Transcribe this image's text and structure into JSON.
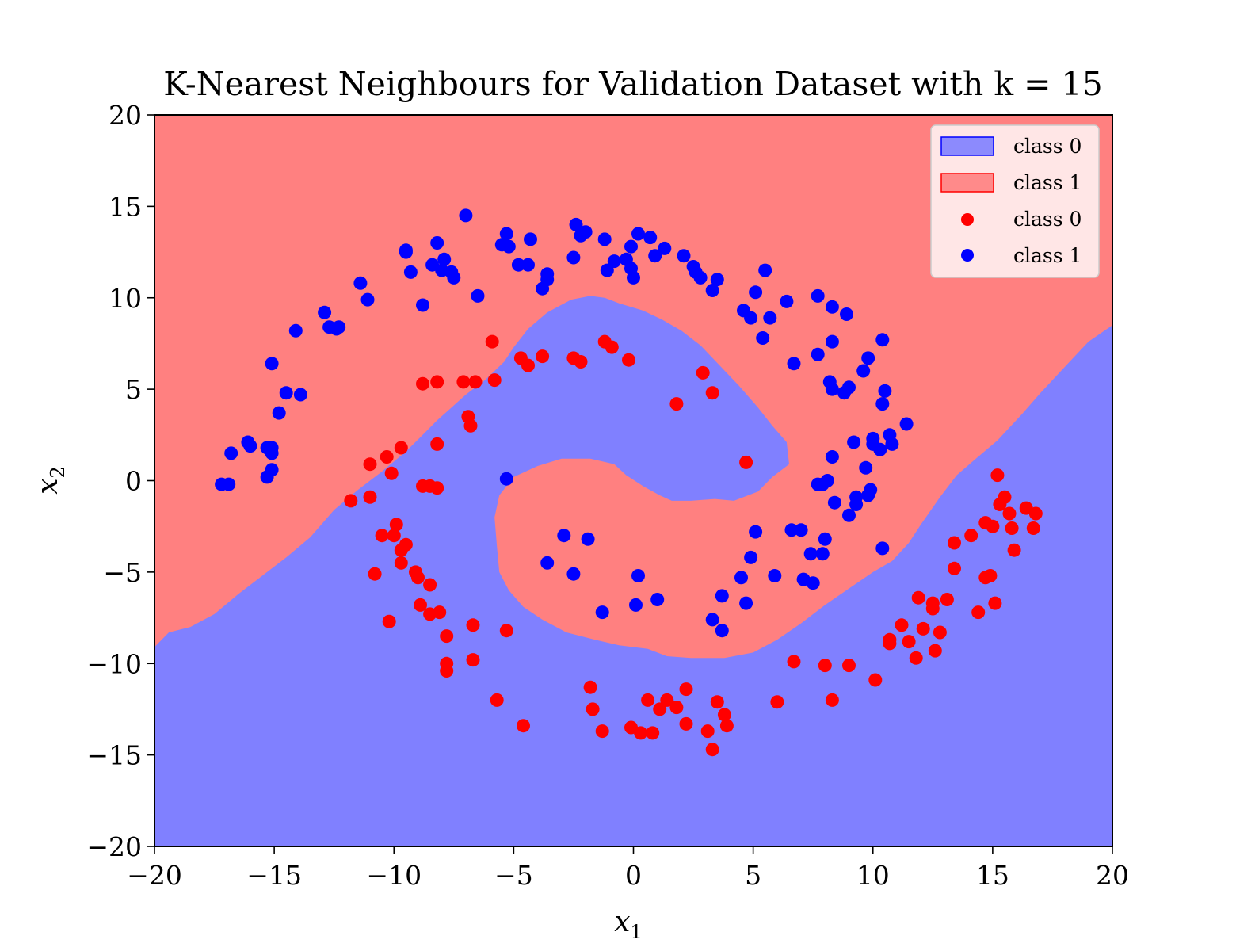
{
  "chart_data": {
    "type": "scatter",
    "title": "K-Nearest Neighbours for Validation Dataset with k = 15",
    "xlabel_main": "x",
    "xlabel_sub": "1",
    "ylabel_main": "x",
    "ylabel_sub": "2",
    "xlim": [
      -20,
      20
    ],
    "ylim": [
      -20,
      20
    ],
    "xticks": [
      -20,
      -15,
      -10,
      -5,
      0,
      5,
      10,
      15,
      20
    ],
    "yticks": [
      -20,
      -15,
      -10,
      -5,
      0,
      5,
      10,
      15,
      20
    ],
    "xtick_labels": [
      "−20",
      "−15",
      "−10",
      "−5",
      "0",
      "5",
      "10",
      "15",
      "20"
    ],
    "ytick_labels": [
      "−20",
      "−15",
      "−10",
      "−5",
      "0",
      "5",
      "10",
      "15",
      "20"
    ],
    "grid": false,
    "legend_position": "top-right",
    "colors": {
      "region_class0": "#8080ff",
      "region_class1": "#ff8080",
      "points_red": "#ff0000",
      "points_blue": "#0000ff"
    },
    "legend": [
      {
        "label": "class 0",
        "kind": "patch",
        "color": "#8080ff"
      },
      {
        "label": "class 1",
        "kind": "patch",
        "color": "#ff8080"
      },
      {
        "label": "class 0",
        "kind": "marker",
        "color": "#ff0000"
      },
      {
        "label": "class 1",
        "kind": "marker",
        "color": "#0000ff"
      }
    ],
    "decision_regions": {
      "class0_region_boundary": [
        [
          -20,
          -9.1
        ],
        [
          -19.4,
          -8.3
        ],
        [
          -18.5,
          -8.0
        ],
        [
          -17.5,
          -7.3
        ],
        [
          -16.5,
          -6.2
        ],
        [
          -15.5,
          -5.2
        ],
        [
          -14.5,
          -4.2
        ],
        [
          -13.5,
          -3.1
        ],
        [
          -12.5,
          -1.6
        ],
        [
          -11.5,
          -0.5
        ],
        [
          -10.5,
          0.5
        ],
        [
          -9.5,
          1.6
        ],
        [
          -8.8,
          2.5
        ],
        [
          -8.2,
          3.3
        ],
        [
          -7.6,
          4.0
        ],
        [
          -7.0,
          4.7
        ],
        [
          -6.2,
          5.5
        ],
        [
          -5.4,
          6.5
        ],
        [
          -5.0,
          7.3
        ],
        [
          -4.4,
          8.3
        ],
        [
          -3.6,
          9.2
        ],
        [
          -2.6,
          9.9
        ],
        [
          -1.8,
          10.1
        ],
        [
          -1.2,
          10.0
        ],
        [
          -0.6,
          9.7
        ],
        [
          0.4,
          9.3
        ],
        [
          1.2,
          8.8
        ],
        [
          2.0,
          8.2
        ],
        [
          2.8,
          7.4
        ],
        [
          3.6,
          6.3
        ],
        [
          4.4,
          5.2
        ],
        [
          5.2,
          4.0
        ],
        [
          5.8,
          3.0
        ],
        [
          6.4,
          2.1
        ],
        [
          6.5,
          0.9
        ],
        [
          5.8,
          0.2
        ],
        [
          5.2,
          -0.6
        ],
        [
          4.2,
          -1.1
        ],
        [
          3.4,
          -1.0
        ],
        [
          2.4,
          -1.1
        ],
        [
          1.6,
          -1.1
        ],
        [
          1.1,
          -0.8
        ],
        [
          0.4,
          -0.3
        ],
        [
          -0.3,
          0.3
        ],
        [
          -0.8,
          0.9
        ],
        [
          -1.8,
          1.2
        ],
        [
          -3.0,
          1.2
        ],
        [
          -4.0,
          0.8
        ],
        [
          -5.0,
          0.2
        ],
        [
          -5.6,
          -0.8
        ],
        [
          -5.8,
          -2.0
        ],
        [
          -5.7,
          -3.6
        ],
        [
          -5.6,
          -5.0
        ],
        [
          -5.2,
          -6.0
        ],
        [
          -4.6,
          -6.9
        ],
        [
          -3.8,
          -7.6
        ],
        [
          -2.8,
          -8.3
        ],
        [
          -1.6,
          -8.7
        ],
        [
          -0.6,
          -9.0
        ],
        [
          0.6,
          -9.2
        ],
        [
          1.4,
          -9.6
        ],
        [
          2.4,
          -9.7
        ],
        [
          3.8,
          -9.7
        ],
        [
          5.0,
          -9.4
        ],
        [
          6.0,
          -8.7
        ],
        [
          7.0,
          -7.8
        ],
        [
          8.0,
          -6.8
        ],
        [
          9.0,
          -5.9
        ],
        [
          10.0,
          -5.0
        ],
        [
          10.8,
          -4.4
        ],
        [
          11.5,
          -3.4
        ],
        [
          12.0,
          -2.4
        ],
        [
          12.8,
          -0.9
        ],
        [
          13.5,
          0.3
        ],
        [
          14.3,
          1.2
        ],
        [
          15.2,
          2.2
        ],
        [
          16.2,
          3.6
        ],
        [
          17.0,
          4.8
        ],
        [
          18.0,
          6.2
        ],
        [
          19.0,
          7.6
        ],
        [
          20.0,
          8.5
        ],
        [
          20,
          -20
        ],
        [
          -20,
          -20
        ]
      ]
    },
    "series": [
      {
        "name": "class 0",
        "color": "#ff0000",
        "points": [
          [
            -11.8,
            -1.1
          ],
          [
            -11.0,
            -0.9
          ],
          [
            -11.0,
            0.9
          ],
          [
            -10.3,
            1.3
          ],
          [
            -10.1,
            0.4
          ],
          [
            -9.7,
            1.8
          ],
          [
            -8.8,
            5.3
          ],
          [
            -8.2,
            5.4
          ],
          [
            -8.2,
            2.0
          ],
          [
            -8.8,
            -0.3
          ],
          [
            -8.5,
            -0.3
          ],
          [
            -8.2,
            -0.4
          ],
          [
            -10.5,
            -3.0
          ],
          [
            -10.0,
            -3.0
          ],
          [
            -9.9,
            -2.4
          ],
          [
            -9.7,
            -3.8
          ],
          [
            -9.5,
            -3.5
          ],
          [
            -9.7,
            -4.5
          ],
          [
            -10.8,
            -5.1
          ],
          [
            -9.1,
            -5.0
          ],
          [
            -9.0,
            -5.3
          ],
          [
            -8.5,
            -5.7
          ],
          [
            -8.9,
            -6.8
          ],
          [
            -8.5,
            -7.3
          ],
          [
            -8.1,
            -7.2
          ],
          [
            -10.2,
            -7.7
          ],
          [
            -7.8,
            -8.5
          ],
          [
            -7.8,
            -10.0
          ],
          [
            -7.8,
            -10.4
          ],
          [
            -6.7,
            -9.8
          ],
          [
            -6.7,
            -7.9
          ],
          [
            -5.3,
            -8.2
          ],
          [
            -5.7,
            -12.0
          ],
          [
            -4.6,
            -13.4
          ],
          [
            -7.1,
            5.4
          ],
          [
            -6.6,
            5.4
          ],
          [
            -5.8,
            5.5
          ],
          [
            -6.9,
            3.5
          ],
          [
            -6.8,
            3.0
          ],
          [
            -5.9,
            7.6
          ],
          [
            -4.7,
            6.7
          ],
          [
            -4.4,
            6.3
          ],
          [
            -3.8,
            6.8
          ],
          [
            -2.5,
            6.7
          ],
          [
            -2.2,
            6.5
          ],
          [
            -1.2,
            7.6
          ],
          [
            -0.9,
            7.3
          ],
          [
            -0.2,
            6.6
          ],
          [
            1.8,
            4.2
          ],
          [
            2.9,
            5.9
          ],
          [
            3.3,
            4.8
          ],
          [
            4.7,
            1.0
          ],
          [
            -1.8,
            -11.3
          ],
          [
            -1.7,
            -12.5
          ],
          [
            -1.3,
            -13.7
          ],
          [
            -0.1,
            -13.5
          ],
          [
            0.3,
            -13.8
          ],
          [
            0.8,
            -13.8
          ],
          [
            0.6,
            -12.0
          ],
          [
            1.1,
            -12.5
          ],
          [
            1.4,
            -12.0
          ],
          [
            1.8,
            -12.4
          ],
          [
            2.2,
            -13.3
          ],
          [
            2.2,
            -11.4
          ],
          [
            3.1,
            -13.7
          ],
          [
            3.3,
            -14.7
          ],
          [
            3.5,
            -12.1
          ],
          [
            3.8,
            -12.8
          ],
          [
            3.9,
            -13.4
          ],
          [
            6.0,
            -12.1
          ],
          [
            6.7,
            -9.9
          ],
          [
            8.0,
            -10.1
          ],
          [
            8.3,
            -12.0
          ],
          [
            9.0,
            -10.1
          ],
          [
            10.1,
            -10.9
          ],
          [
            10.7,
            -8.7
          ],
          [
            10.7,
            -8.9
          ],
          [
            11.2,
            -7.9
          ],
          [
            11.5,
            -8.8
          ],
          [
            11.8,
            -9.7
          ],
          [
            11.9,
            -6.4
          ],
          [
            12.1,
            -8.1
          ],
          [
            12.5,
            -6.7
          ],
          [
            12.5,
            -7.0
          ],
          [
            12.6,
            -9.3
          ],
          [
            12.8,
            -8.3
          ],
          [
            13.1,
            -6.5
          ],
          [
            13.4,
            -3.4
          ],
          [
            13.4,
            -4.8
          ],
          [
            14.1,
            -3.0
          ],
          [
            14.4,
            -7.2
          ],
          [
            14.7,
            -5.3
          ],
          [
            14.7,
            -2.3
          ],
          [
            14.9,
            -5.2
          ],
          [
            15.0,
            -2.5
          ],
          [
            15.1,
            -6.7
          ],
          [
            15.2,
            0.3
          ],
          [
            15.3,
            -1.3
          ],
          [
            15.5,
            -0.9
          ],
          [
            15.7,
            -1.8
          ],
          [
            15.8,
            -2.6
          ],
          [
            15.9,
            -3.8
          ],
          [
            16.4,
            -1.5
          ],
          [
            16.7,
            -2.6
          ],
          [
            16.8,
            -1.8
          ]
        ]
      },
      {
        "name": "class 1",
        "color": "#0000ff",
        "points": [
          [
            -17.2,
            -0.2
          ],
          [
            -16.9,
            -0.2
          ],
          [
            -16.8,
            1.5
          ],
          [
            -16.1,
            2.1
          ],
          [
            -16.0,
            1.9
          ],
          [
            -15.3,
            1.8
          ],
          [
            -15.1,
            1.8
          ],
          [
            -15.1,
            1.5
          ],
          [
            -15.1,
            0.6
          ],
          [
            -15.3,
            0.2
          ],
          [
            -15.1,
            6.4
          ],
          [
            -14.8,
            3.7
          ],
          [
            -14.5,
            4.8
          ],
          [
            -13.9,
            4.7
          ],
          [
            -14.1,
            8.2
          ],
          [
            -12.9,
            9.2
          ],
          [
            -12.7,
            8.4
          ],
          [
            -12.4,
            8.3
          ],
          [
            -12.3,
            8.4
          ],
          [
            -11.4,
            10.8
          ],
          [
            -11.1,
            9.9
          ],
          [
            -9.5,
            12.5
          ],
          [
            -9.5,
            12.6
          ],
          [
            -9.3,
            11.4
          ],
          [
            -8.8,
            9.6
          ],
          [
            -8.4,
            11.8
          ],
          [
            -8.2,
            13.0
          ],
          [
            -8.0,
            11.5
          ],
          [
            -7.9,
            12.1
          ],
          [
            -7.6,
            11.4
          ],
          [
            -7.5,
            11.1
          ],
          [
            -7.0,
            14.5
          ],
          [
            -6.5,
            10.1
          ],
          [
            -5.5,
            12.9
          ],
          [
            -5.3,
            13.5
          ],
          [
            -5.2,
            12.8
          ],
          [
            -4.8,
            11.8
          ],
          [
            -4.3,
            13.2
          ],
          [
            -4.4,
            11.8
          ],
          [
            -3.8,
            10.5
          ],
          [
            -3.6,
            11.0
          ],
          [
            -3.6,
            11.3
          ],
          [
            -2.5,
            12.2
          ],
          [
            -2.4,
            14.0
          ],
          [
            -2.2,
            13.4
          ],
          [
            -2.0,
            13.6
          ],
          [
            -1.2,
            13.2
          ],
          [
            -1.1,
            11.5
          ],
          [
            -0.8,
            12.0
          ],
          [
            -0.3,
            12.1
          ],
          [
            -0.1,
            11.6
          ],
          [
            0.0,
            11.1
          ],
          [
            -0.1,
            12.8
          ],
          [
            0.2,
            13.5
          ],
          [
            0.7,
            13.3
          ],
          [
            0.9,
            12.3
          ],
          [
            1.3,
            12.7
          ],
          [
            2.1,
            12.3
          ],
          [
            2.5,
            11.7
          ],
          [
            2.6,
            11.4
          ],
          [
            2.8,
            11.1
          ],
          [
            3.3,
            10.4
          ],
          [
            3.5,
            11.0
          ],
          [
            4.6,
            9.3
          ],
          [
            4.9,
            8.9
          ],
          [
            5.1,
            10.3
          ],
          [
            5.4,
            7.8
          ],
          [
            5.5,
            11.5
          ],
          [
            5.7,
            8.9
          ],
          [
            6.4,
            9.8
          ],
          [
            6.7,
            6.4
          ],
          [
            7.7,
            10.1
          ],
          [
            7.7,
            6.9
          ],
          [
            8.2,
            5.4
          ],
          [
            8.3,
            7.6
          ],
          [
            8.3,
            5.0
          ],
          [
            8.3,
            9.5
          ],
          [
            8.9,
            9.1
          ],
          [
            9.0,
            5.1
          ],
          [
            8.8,
            4.8
          ],
          [
            9.2,
            2.1
          ],
          [
            9.6,
            6.0
          ],
          [
            9.8,
            6.7
          ],
          [
            10.0,
            2.3
          ],
          [
            10.0,
            2.0
          ],
          [
            10.3,
            1.7
          ],
          [
            10.4,
            4.2
          ],
          [
            10.5,
            4.9
          ],
          [
            10.4,
            7.7
          ],
          [
            10.7,
            2.5
          ],
          [
            10.8,
            2.0
          ],
          [
            11.4,
            3.1
          ],
          [
            7.7,
            -0.2
          ],
          [
            7.9,
            -0.2
          ],
          [
            8.1,
            0.0
          ],
          [
            8.3,
            1.3
          ],
          [
            8.4,
            -1.2
          ],
          [
            9.3,
            -0.9
          ],
          [
            9.3,
            -1.3
          ],
          [
            9.8,
            -0.8
          ],
          [
            9.9,
            -0.5
          ],
          [
            9.7,
            0.7
          ],
          [
            9.0,
            -1.9
          ],
          [
            10.4,
            -3.7
          ],
          [
            -5.3,
            0.1
          ],
          [
            -2.9,
            -3.0
          ],
          [
            -1.9,
            -3.2
          ],
          [
            -3.6,
            -4.5
          ],
          [
            -2.5,
            -5.1
          ],
          [
            -1.3,
            -7.2
          ],
          [
            0.2,
            -5.2
          ],
          [
            0.1,
            -6.8
          ],
          [
            1.0,
            -6.5
          ],
          [
            3.3,
            -7.6
          ],
          [
            3.7,
            -8.2
          ],
          [
            3.7,
            -6.3
          ],
          [
            4.5,
            -5.3
          ],
          [
            4.7,
            -6.7
          ],
          [
            4.9,
            -4.2
          ],
          [
            5.1,
            -2.8
          ],
          [
            5.9,
            -5.2
          ],
          [
            6.6,
            -2.7
          ],
          [
            7.0,
            -2.7
          ],
          [
            7.1,
            -5.4
          ],
          [
            7.4,
            -4.0
          ],
          [
            7.5,
            -5.6
          ],
          [
            7.9,
            -4.0
          ],
          [
            8.0,
            -3.2
          ]
        ]
      }
    ]
  }
}
